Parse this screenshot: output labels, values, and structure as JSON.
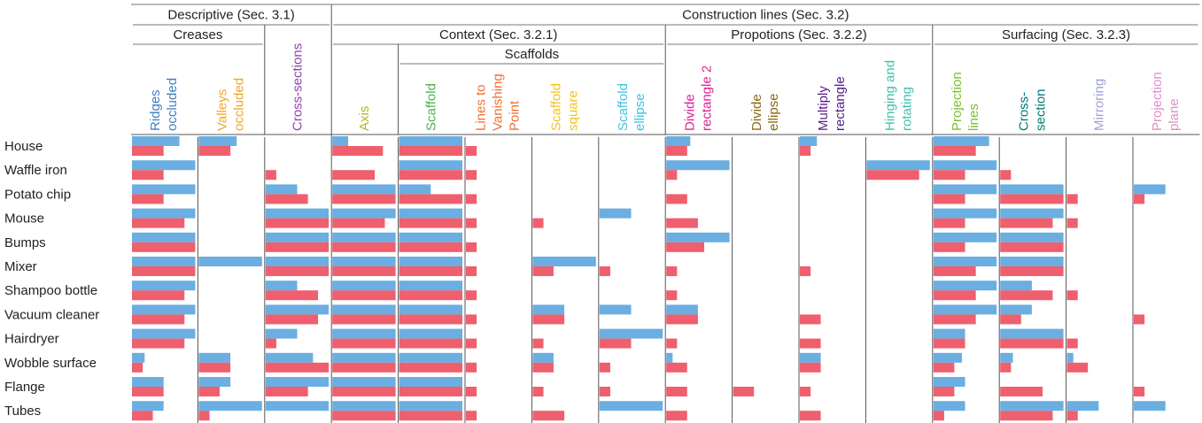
{
  "chart_data": {
    "type": "bar",
    "xlim": [
      0,
      1
    ],
    "groups": [
      {
        "label": "Descriptive (Sec. 3.1)"
      },
      {
        "label": "Construction lines (Sec. 3.2)"
      },
      {
        "label": "Creases"
      },
      {
        "label": "Context (Sec. 3.2.1)"
      },
      {
        "label": "Propotions (Sec. 3.2.2)"
      },
      {
        "label": "Surfacing (Sec. 3.2.3)"
      },
      {
        "label": "Scaffolds"
      }
    ],
    "columns": [
      {
        "label": [
          "Ridges",
          "occluded"
        ],
        "color": "#3f7fc6"
      },
      {
        "label": [
          "Valleys",
          "occluded"
        ],
        "color": "#f0a52a"
      },
      {
        "label": [
          "Cross-sections"
        ],
        "color": "#8e44ad"
      },
      {
        "label": [
          "Axis"
        ],
        "color": "#b5b523"
      },
      {
        "label": [
          "Scaffold"
        ],
        "color": "#4caf50"
      },
      {
        "label": [
          "Lines to",
          "Vanishing",
          "Point"
        ],
        "color": "#f07030"
      },
      {
        "label": [
          "Scaffold",
          "square"
        ],
        "color": "#f2c21e"
      },
      {
        "label": [
          "Scaffold",
          "ellipse"
        ],
        "color": "#42c2e2"
      },
      {
        "label": [
          "Divide",
          "rectangle 2"
        ],
        "color": "#e0209a"
      },
      {
        "label": [
          "Divide",
          "ellipse"
        ],
        "color": "#8b6914"
      },
      {
        "label": [
          "Multiply",
          "rectangle"
        ],
        "color": "#5a1a8a"
      },
      {
        "label": [
          "Hinging and",
          "rotating"
        ],
        "color": "#40c0b0"
      },
      {
        "label": [
          "Projection",
          "lines"
        ],
        "color": "#7ac030"
      },
      {
        "label": [
          "Cross-",
          "section"
        ],
        "color": "#007a7a"
      },
      {
        "label": [
          "Mirroring"
        ],
        "color": "#a0a0d8"
      },
      {
        "label": [
          "Projection",
          "plane"
        ],
        "color": "#e090c8"
      }
    ],
    "categories": [
      "House",
      "Waffle iron",
      "Potato chip",
      "Mouse",
      "Bumps",
      "Mixer",
      "Shampoo bottle",
      "Vacuum cleaner",
      "Hairdryer",
      "Wobble surface",
      "Flange",
      "Tubes"
    ],
    "series": [
      {
        "color": "#6aaee2",
        "values": [
          [
            0.75,
            0.6,
            0,
            0.25,
            1,
            0,
            0,
            0,
            0.38,
            0,
            0.27,
            0,
            0.88,
            0,
            0,
            0
          ],
          [
            1,
            0,
            0,
            0,
            1,
            0,
            0,
            0,
            1,
            0,
            0,
            1,
            1,
            0,
            0,
            0
          ],
          [
            1,
            0,
            0.5,
            1,
            0.5,
            0,
            0,
            0,
            0,
            0,
            0,
            0,
            1,
            1,
            0,
            0.5
          ],
          [
            1,
            0,
            1,
            1,
            1,
            0,
            0,
            0.5,
            0,
            0,
            0,
            0,
            1,
            1,
            0,
            0
          ],
          [
            1,
            0,
            1,
            1,
            1,
            0,
            0,
            0,
            1,
            0,
            0,
            0,
            1,
            1,
            0,
            0
          ],
          [
            1,
            1,
            1,
            1,
            1,
            0,
            1,
            0,
            0,
            0,
            0,
            0,
            1,
            1,
            0,
            0
          ],
          [
            1,
            0,
            0.5,
            1,
            1,
            0,
            0,
            0,
            0,
            0,
            0,
            0,
            1,
            0.5,
            0,
            0
          ],
          [
            1,
            0,
            1,
            1,
            1,
            0,
            0.5,
            0.5,
            0.5,
            0,
            0,
            0,
            1,
            0.5,
            0,
            0
          ],
          [
            1,
            0,
            0.5,
            1,
            1,
            0,
            0,
            1,
            0,
            0,
            0,
            0,
            0.5,
            1,
            0,
            0
          ],
          [
            0.2,
            0.5,
            0.75,
            1,
            1,
            0,
            0.33,
            0,
            0.1,
            0,
            0.33,
            0,
            0.45,
            0.2,
            0.1,
            0
          ],
          [
            0.5,
            0.5,
            1,
            1,
            1,
            0,
            0,
            0,
            0,
            0,
            0,
            0,
            0.5,
            0,
            0,
            0
          ],
          [
            0.5,
            1,
            1,
            1,
            1,
            0,
            0,
            1,
            0,
            0,
            0,
            0,
            0.5,
            1,
            0.5,
            0.5
          ]
        ]
      },
      {
        "color": "#ef5f6d",
        "values": [
          [
            0.5,
            0.5,
            0,
            0.8,
            1,
            0.17,
            0,
            0,
            0.33,
            0,
            0.17,
            0,
            0.67,
            0,
            0,
            0
          ],
          [
            0.5,
            0,
            0.17,
            0.67,
            1,
            0.17,
            0,
            0,
            0.17,
            0,
            0,
            0.83,
            0.5,
            0.17,
            0,
            0
          ],
          [
            0.5,
            0,
            0.67,
            1,
            1,
            0.17,
            0,
            0,
            0.33,
            0,
            0,
            0,
            0.5,
            1,
            0.17,
            0.17
          ],
          [
            0.83,
            0,
            1,
            0.83,
            1,
            0.17,
            0.17,
            0,
            0.5,
            0,
            0,
            0,
            0.5,
            0.83,
            0.17,
            0
          ],
          [
            1,
            0,
            1,
            1,
            1,
            0.17,
            0,
            0,
            0.6,
            0,
            0,
            0,
            0.5,
            1,
            0,
            0
          ],
          [
            1,
            0,
            1,
            1,
            1,
            0.17,
            0.33,
            0.17,
            0.17,
            0,
            0.17,
            0,
            0.67,
            1,
            0,
            0
          ],
          [
            0.83,
            0,
            0.83,
            1,
            1,
            0.17,
            0,
            0,
            0.17,
            0,
            0,
            0,
            0.67,
            0.83,
            0.17,
            0
          ],
          [
            0.83,
            0,
            0.83,
            1,
            1,
            0.17,
            0.5,
            0,
            0.5,
            0,
            0.33,
            0,
            0.67,
            0.33,
            0,
            0.17
          ],
          [
            0.83,
            0,
            0.17,
            1,
            1,
            0.17,
            0.17,
            0.5,
            0.17,
            0,
            0.33,
            0,
            0.5,
            1,
            0.17,
            0
          ],
          [
            0.17,
            0.5,
            1,
            1,
            1,
            0.17,
            0.33,
            0.17,
            0.33,
            0,
            0.33,
            0,
            0.33,
            0.17,
            0.33,
            0
          ],
          [
            0.5,
            0.33,
            0.67,
            1,
            1,
            0.17,
            0.17,
            0.17,
            0.33,
            0.33,
            0.17,
            0,
            0.33,
            0.67,
            0,
            0.17
          ],
          [
            0.33,
            0.17,
            0,
            1,
            1,
            0.17,
            0.5,
            0,
            0.33,
            0,
            0.33,
            0,
            0.17,
            0.83,
            0.17,
            0
          ]
        ]
      }
    ]
  }
}
